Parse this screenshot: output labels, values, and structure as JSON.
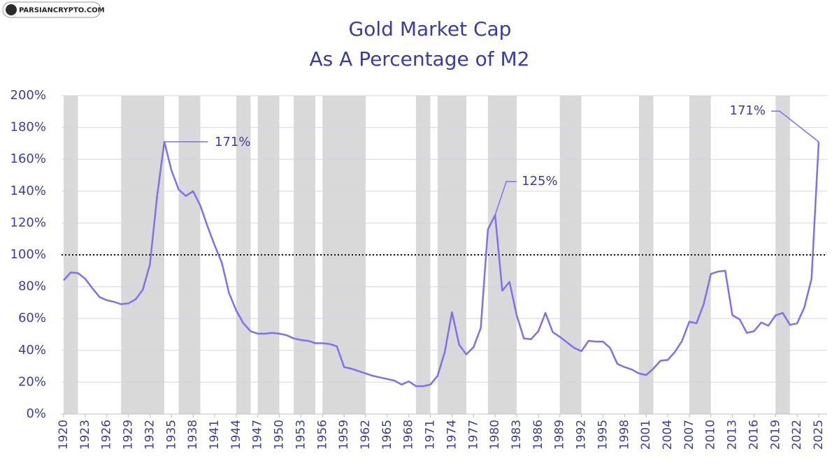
{
  "watermark": "PARSIANCRYPTO.COM",
  "chart_data": {
    "type": "line",
    "title": "Gold Market Cap",
    "subtitle": "As A Percentage of M2",
    "x": [
      1920,
      1921,
      1922,
      1923,
      1924,
      1925,
      1926,
      1927,
      1928,
      1929,
      1930,
      1931,
      1932,
      1933,
      1934,
      1935,
      1936,
      1937,
      1938,
      1939,
      1940,
      1941,
      1942,
      1943,
      1944,
      1945,
      1946,
      1947,
      1948,
      1949,
      1950,
      1951,
      1952,
      1953,
      1954,
      1955,
      1956,
      1957,
      1958,
      1959,
      1960,
      1961,
      1962,
      1963,
      1964,
      1965,
      1966,
      1967,
      1968,
      1969,
      1970,
      1971,
      1972,
      1973,
      1974,
      1975,
      1976,
      1977,
      1978,
      1979,
      1980,
      1981,
      1982,
      1983,
      1984,
      1985,
      1986,
      1987,
      1988,
      1989,
      1990,
      1991,
      1992,
      1993,
      1994,
      1995,
      1996,
      1997,
      1998,
      1999,
      2000,
      2001,
      2002,
      2003,
      2004,
      2005,
      2006,
      2007,
      2008,
      2009,
      2010,
      2011,
      2012,
      2013,
      2014,
      2015,
      2016,
      2017,
      2018,
      2019,
      2020,
      2021,
      2022,
      2023,
      2024,
      2025
    ],
    "series": [
      {
        "color": "#7f6ff2",
        "values": [
          84,
          89,
          88.5,
          85,
          79,
          73.5,
          71.5,
          70.5,
          69,
          69.5,
          72,
          78,
          94,
          137,
          171,
          153,
          141,
          137,
          140,
          131,
          118,
          106,
          95,
          76,
          65,
          57,
          52,
          50.5,
          50.5,
          51,
          50.5,
          49.5,
          47.5,
          46.5,
          46,
          44.5,
          44.5,
          44,
          42.5,
          29.5,
          28.5,
          27,
          25.5,
          24,
          23,
          22,
          21,
          18.5,
          20.5,
          17.5,
          17.5,
          18.5,
          24,
          39,
          64,
          43.5,
          37.5,
          42,
          54,
          116,
          125,
          77.5,
          83,
          62,
          47.5,
          47,
          52,
          63.5,
          51.5,
          48.5,
          45,
          41.5,
          39.5,
          46,
          45.5,
          45.5,
          41.5,
          31.5,
          29.5,
          28,
          25.5,
          24.5,
          28.5,
          33.5,
          34,
          39,
          46,
          58,
          57,
          69,
          88,
          89.5,
          90,
          62,
          59.5,
          51,
          52,
          57.5,
          55.5,
          62,
          63.5,
          56,
          57,
          67,
          85,
          171
        ]
      }
    ],
    "xlim": [
      1920,
      2025
    ],
    "xticks": [
      1920,
      1923,
      1926,
      1929,
      1932,
      1935,
      1938,
      1941,
      1944,
      1947,
      1950,
      1953,
      1956,
      1959,
      1962,
      1965,
      1968,
      1971,
      1974,
      1977,
      1980,
      1983,
      1986,
      1989,
      1992,
      1995,
      1998,
      2001,
      2004,
      2007,
      2010,
      2013,
      2016,
      2019,
      2022,
      2025
    ],
    "ylim": [
      0,
      200
    ],
    "yticks": [
      {
        "value": 0,
        "label": "0%"
      },
      {
        "value": 20,
        "label": "20%"
      },
      {
        "value": 40,
        "label": "40%"
      },
      {
        "value": 60,
        "label": "60%"
      },
      {
        "value": 80,
        "label": "80%"
      },
      {
        "value": 100,
        "label": "100%"
      },
      {
        "value": 120,
        "label": "120%"
      },
      {
        "value": 140,
        "label": "140%"
      },
      {
        "value": 160,
        "label": "160%"
      },
      {
        "value": 180,
        "label": "180%"
      },
      {
        "value": 200,
        "label": "200%"
      }
    ],
    "grid": true,
    "reference_line": 100,
    "shaded_periods": [
      [
        1920,
        1922
      ],
      [
        1928,
        1934
      ],
      [
        1936,
        1939
      ],
      [
        1944,
        1946
      ],
      [
        1947,
        1950
      ],
      [
        1952,
        1955
      ],
      [
        1956,
        1962
      ],
      [
        1969,
        1971
      ],
      [
        1972,
        1976
      ],
      [
        1979,
        1983
      ],
      [
        1989,
        1992
      ],
      [
        2000,
        2002
      ],
      [
        2007,
        2010
      ],
      [
        2019,
        2021
      ]
    ],
    "annotations": [
      {
        "text": "171%",
        "x": 1934,
        "y": 171
      },
      {
        "text": "125%",
        "x": 1980,
        "y": 125
      },
      {
        "text": "171%",
        "x": 2025,
        "y": 171
      }
    ]
  }
}
